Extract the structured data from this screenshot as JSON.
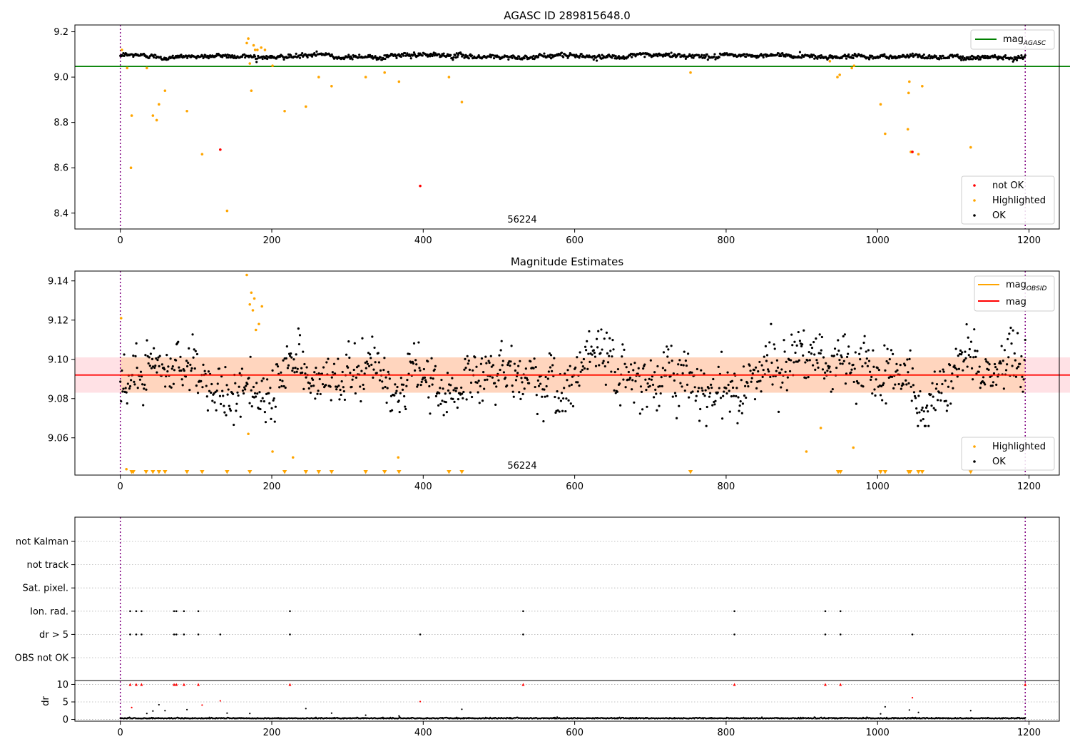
{
  "chart_data": [
    {
      "type": "scatter",
      "title": "AGASC ID 289815648.0",
      "xlim": [
        -60,
        1240
      ],
      "ylim": [
        8.33,
        9.23
      ],
      "x_ticks": [
        0,
        200,
        400,
        600,
        800,
        1000,
        1200
      ],
      "y_ticks": [
        8.4,
        8.6,
        8.8,
        9.0,
        9.2
      ],
      "y_tick_labels": [
        "8.4",
        "8.6",
        "8.8",
        "9.0",
        "9.2"
      ],
      "vlines": [
        0,
        1195
      ],
      "obsid_label": {
        "text": "56224",
        "x": 597
      },
      "hline": {
        "name": "mag_AGASC",
        "value": 9.047,
        "x_range": [
          -60,
          1255
        ],
        "color": "#008000"
      },
      "legend_line": {
        "main": "mag",
        "sub": "AGASC",
        "position": "top-right"
      },
      "legend_markers": {
        "items": [
          "not OK",
          "Highlighted",
          "OK"
        ],
        "colors": [
          "#ff0000",
          "#ffa500",
          "#000000"
        ],
        "position": "lower-right"
      },
      "ok_points": {
        "x_range": [
          0,
          1195
        ],
        "count": 1190,
        "mean": 9.093,
        "scatter": 0.006,
        "color": "#000000"
      },
      "highlighted_points": {
        "color": "#ffa500",
        "x": [
          2,
          9,
          14,
          15,
          35,
          43,
          48,
          51,
          59,
          88,
          108,
          141,
          167,
          169,
          171,
          173,
          176,
          178,
          181,
          186,
          191,
          201,
          217,
          245,
          262,
          279,
          324,
          349,
          368,
          434,
          451,
          753,
          937,
          947,
          950,
          966,
          969,
          1004,
          1010,
          1040,
          1041,
          1042,
          1044,
          1054,
          1059,
          1123
        ],
        "y": [
          9.12,
          9.04,
          8.6,
          8.83,
          9.04,
          8.83,
          8.81,
          8.88,
          8.94,
          8.85,
          8.66,
          8.41,
          9.15,
          9.17,
          9.06,
          8.94,
          9.14,
          9.12,
          9.12,
          9.13,
          9.12,
          9.05,
          8.85,
          8.87,
          9.0,
          8.96,
          9.0,
          9.02,
          8.98,
          9.0,
          8.89,
          9.02,
          9.07,
          9.0,
          9.01,
          9.04,
          9.05,
          8.88,
          8.75,
          8.77,
          8.93,
          8.98,
          8.67,
          8.66,
          8.96,
          8.69
        ]
      },
      "not_ok_points": {
        "color": "#ff0000",
        "x": [
          132,
          396,
          1046
        ],
        "y": [
          8.68,
          8.52,
          8.67
        ]
      }
    },
    {
      "type": "scatter",
      "title": "Magnitude Estimates",
      "xlim": [
        -60,
        1240
      ],
      "ylim": [
        9.041,
        9.145
      ],
      "x_ticks": [
        0,
        200,
        400,
        600,
        800,
        1000,
        1200
      ],
      "y_ticks": [
        9.06,
        9.08,
        9.1,
        9.12,
        9.14
      ],
      "y_tick_labels": [
        "9.06",
        "9.08",
        "9.10",
        "9.12",
        "9.14"
      ],
      "vlines": [
        0,
        1195
      ],
      "obsid_label": {
        "text": "56224",
        "x": 597
      },
      "mag": {
        "value": 9.092,
        "band": [
          9.083,
          9.101
        ],
        "x_range": [
          -60,
          1255
        ],
        "color": "#ff0000",
        "band_color": "#ffdce0"
      },
      "mag_obsid": {
        "value": 9.092,
        "band": [
          9.083,
          9.101
        ],
        "x_range": [
          0,
          1195
        ],
        "color": "#ffa500",
        "band_color": "#ffd0b0"
      },
      "legend_lines": {
        "items": [
          {
            "main": "mag",
            "sub": "OBSID"
          },
          {
            "main": "mag",
            "sub": ""
          }
        ],
        "colors": [
          "#ffa500",
          "#ff0000"
        ],
        "position": "top-right"
      },
      "legend_markers": {
        "items": [
          "Highlighted",
          "OK"
        ],
        "colors": [
          "#ffa500",
          "#000000"
        ],
        "position": "lower-right"
      },
      "ok_points": {
        "x_range": [
          0,
          1195
        ],
        "count": 1190,
        "mean": 9.092,
        "scatter": 0.0085,
        "color": "#000000"
      },
      "highlighted_points": {
        "color": "#ffa500",
        "x": [
          1,
          8,
          167,
          169,
          171,
          173,
          175,
          177,
          179,
          183,
          187,
          201,
          228,
          367,
          906,
          925,
          968
        ],
        "y": [
          9.121,
          9.044,
          9.143,
          9.062,
          9.128,
          9.134,
          9.125,
          9.131,
          9.115,
          9.118,
          9.127,
          9.053,
          9.05,
          9.05,
          9.053,
          9.065,
          9.055
        ]
      },
      "lower_limit_markers": {
        "color": "#ffa500",
        "x": [
          15,
          17,
          34,
          43,
          51,
          59,
          88,
          108,
          141,
          171,
          217,
          245,
          262,
          279,
          324,
          349,
          368,
          434,
          451,
          753,
          948,
          951,
          1004,
          1010,
          1041,
          1043,
          1054,
          1059,
          1123
        ]
      }
    },
    {
      "type": "scatter",
      "title": "",
      "xlim": [
        -60,
        1240
      ],
      "x_ticks": [
        0,
        200,
        400,
        600,
        800,
        1000,
        1200
      ],
      "vlines": [
        0,
        1195
      ],
      "flag_rows": [
        "not Kalman",
        "not track",
        "Sat. pixel.",
        "Ion. rad.",
        "dr > 5",
        "OBS not OK"
      ],
      "flags": {
        "Ion. rad.": [
          13,
          21,
          28,
          71,
          74,
          84,
          103,
          224,
          532,
          811,
          931,
          951
        ],
        "dr > 5": [
          13,
          21,
          28,
          71,
          74,
          84,
          103,
          132,
          224,
          396,
          532,
          811,
          931,
          951,
          1046
        ]
      },
      "dr": {
        "ylabel": "dr",
        "ylim": [
          -0.5,
          10.5
        ],
        "y_ticks": [
          0,
          5,
          10
        ],
        "y_tick_labels": [
          "0",
          "5",
          "10"
        ],
        "ok_x_range": [
          0,
          1195
        ],
        "ok_mean": 0.25,
        "clipped_red_x": [
          13,
          21,
          28,
          71,
          74,
          84,
          103,
          224,
          532,
          811,
          931,
          951,
          1195
        ],
        "red_points": {
          "x": [
            15,
            108,
            132,
            396,
            1046
          ],
          "y": [
            3.4,
            4.1,
            5.3,
            5.1,
            6.2
          ],
          "color": "#ff0000"
        },
        "black_points": {
          "x": [
            35,
            43,
            51,
            59,
            88,
            141,
            171,
            245,
            279,
            324,
            368,
            451,
            1004,
            1010,
            1042,
            1054,
            1123
          ],
          "y": [
            1.7,
            2.4,
            4.2,
            2.5,
            2.8,
            1.8,
            1.7,
            3.1,
            1.8,
            1.2,
            1.0,
            2.9,
            1.6,
            3.6,
            2.7,
            2.0,
            2.5
          ],
          "color": "#000000"
        }
      }
    }
  ]
}
